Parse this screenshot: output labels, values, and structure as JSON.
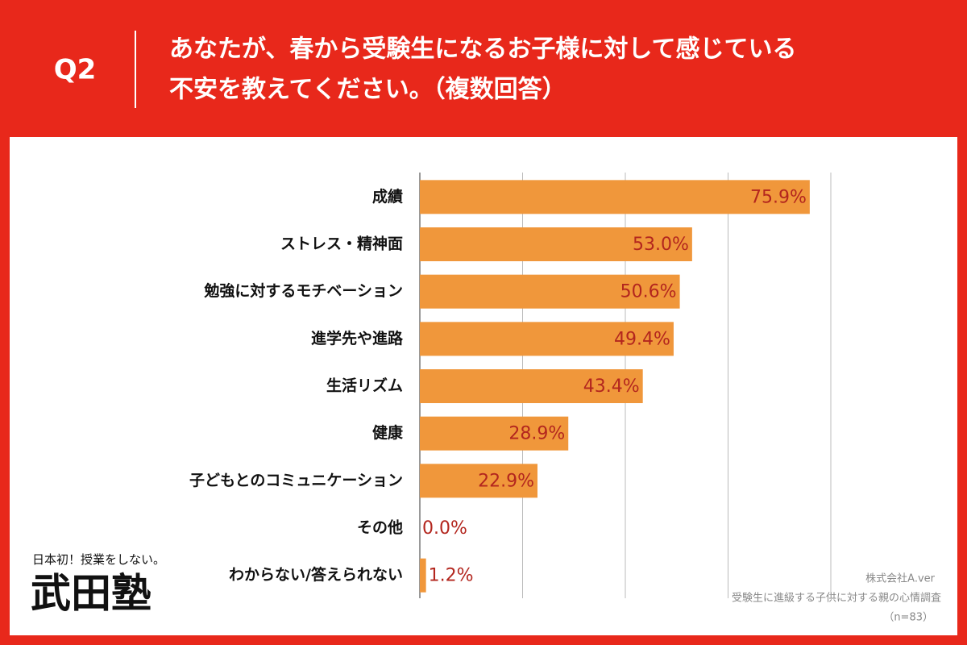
{
  "chart_data": {
    "type": "hbar",
    "question": "Q2",
    "title_lines": [
      "あなたが、春から受験生になるお子様に対して感じている",
      "不安を教えてください。（複数回答）"
    ],
    "categories": [
      "成績",
      "ストレス・精神面",
      "勉強に対するモチベーション",
      "進学先や進路",
      "生活リズム",
      "健康",
      "子どもとのコミュニケーション",
      "その他",
      "わからない/答えられない"
    ],
    "values": [
      75.9,
      53.0,
      50.6,
      49.4,
      43.4,
      28.9,
      22.9,
      0.0,
      1.2
    ],
    "value_labels": [
      "75.9%",
      "53.0%",
      "50.6%",
      "49.4%",
      "43.4%",
      "28.9%",
      "22.9%",
      "0.0%",
      "1.2%"
    ],
    "color": "#f0973b",
    "label_color": "#b3261e",
    "xlim": [
      0,
      100
    ],
    "xticks": [
      0,
      20,
      40,
      60,
      80
    ],
    "grid": true,
    "source": [
      "株式会社A.ver",
      "受験生に進級する子供に対する親の心情調査",
      "（n=83）"
    ]
  },
  "logo": {
    "tagline": "日本初！授業をしない。",
    "name": "武田塾"
  }
}
